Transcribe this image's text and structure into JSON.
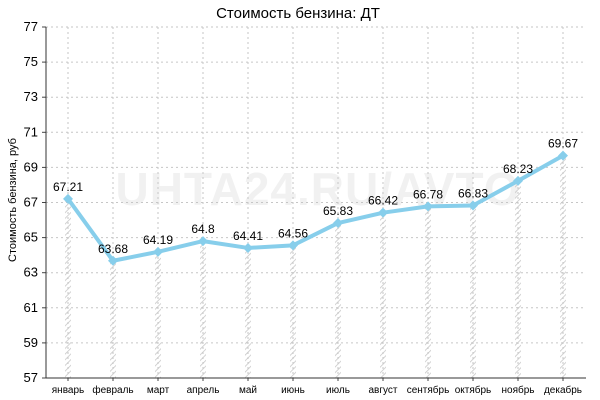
{
  "chart_data": {
    "type": "line",
    "title": "Стоимость бензина: ДТ",
    "ylabel": "Стоимость бензина, руб",
    "xlabel": "",
    "categories": [
      "январь",
      "февраль",
      "март",
      "апрель",
      "май",
      "июнь",
      "июль",
      "август",
      "сентябрь",
      "октябрь",
      "ноябрь",
      "декабрь"
    ],
    "series": [
      {
        "values": [
          67.21,
          63.68,
          64.19,
          64.8,
          64.41,
          64.56,
          65.83,
          66.42,
          66.78,
          66.83,
          68.23,
          69.67
        ]
      }
    ],
    "data_labels": [
      "67.21",
      "63.68",
      "64.19",
      "64.8",
      "64.41",
      "64.56",
      "65.83",
      "66.42",
      "66.78",
      "66.83",
      "68.23",
      "69.67"
    ],
    "ylim": [
      57,
      77
    ],
    "yticks": [
      57,
      59,
      61,
      63,
      65,
      67,
      69,
      71,
      73,
      75,
      77
    ],
    "grid": true,
    "line_color": "#87ceeb",
    "watermark": "UHTA24.RU/AVTO"
  }
}
